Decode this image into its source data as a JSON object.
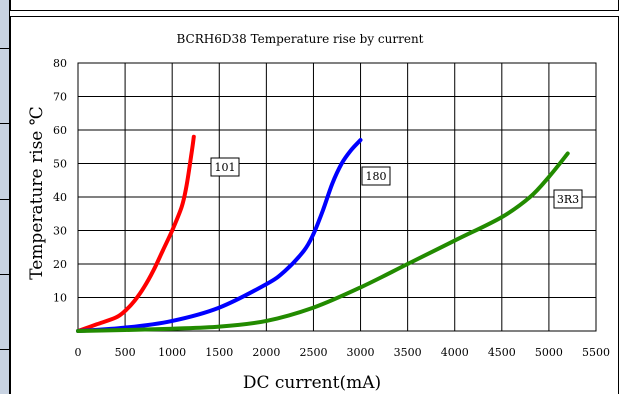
{
  "chart_data": {
    "type": "line",
    "title": "BCRH6D38 Temperature rise by current",
    "xlabel": "DC current(mA)",
    "ylabel": "Temperature rise  ℃",
    "xlim": [
      0,
      5500
    ],
    "ylim": [
      0,
      80
    ],
    "x_ticks": [
      "0",
      "500",
      "1000",
      "1500",
      "2000",
      "2500",
      "3000",
      "3500",
      "4000",
      "4500",
      "5000",
      "5500"
    ],
    "y_ticks": [
      "10",
      "20",
      "30",
      "40",
      "50",
      "60",
      "70",
      "80"
    ],
    "grid": true,
    "series": [
      {
        "name": "101",
        "color": "#ff0000",
        "x": [
          0,
          200,
          400,
          500,
          600,
          700,
          800,
          900,
          1000,
          1100,
          1150,
          1200,
          1230
        ],
        "y": [
          0,
          2,
          4,
          6,
          9,
          13,
          18,
          24,
          30,
          37,
          43,
          52,
          58
        ]
      },
      {
        "name": "180",
        "color": "#0000ff",
        "x": [
          0,
          500,
          1000,
          1500,
          2000,
          2200,
          2400,
          2500,
          2600,
          2700,
          2800,
          2900,
          3000
        ],
        "y": [
          0,
          1,
          3,
          7,
          14,
          18,
          24,
          29,
          36,
          44,
          50,
          54,
          57
        ]
      },
      {
        "name": "3R3",
        "color": "#228b00",
        "x": [
          0,
          500,
          1000,
          1500,
          2000,
          2500,
          3000,
          3500,
          4000,
          4500,
          4800,
          5000,
          5200
        ],
        "y": [
          0,
          0.3,
          0.7,
          1.3,
          3,
          7,
          13,
          20,
          27,
          34,
          40,
          46,
          53
        ]
      }
    ]
  }
}
